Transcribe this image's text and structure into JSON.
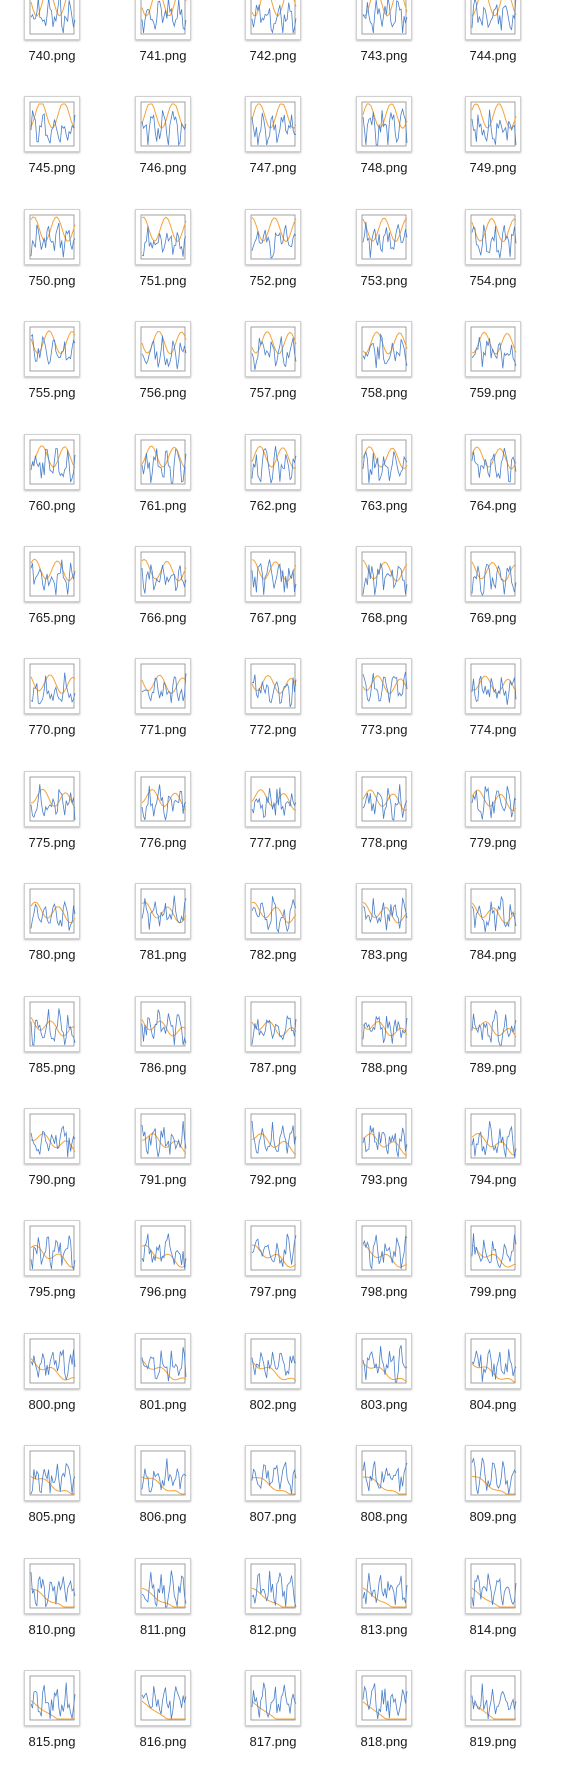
{
  "file_grid": {
    "colors": {
      "blue_line": "#4a7fc9",
      "orange_line": "#f5a23a",
      "frame": "#8a8a8a"
    },
    "files": [
      {
        "label": "740.png",
        "icon": "png-chart-thumbnail"
      },
      {
        "label": "741.png",
        "icon": "png-chart-thumbnail"
      },
      {
        "label": "742.png",
        "icon": "png-chart-thumbnail"
      },
      {
        "label": "743.png",
        "icon": "png-chart-thumbnail"
      },
      {
        "label": "744.png",
        "icon": "png-chart-thumbnail"
      },
      {
        "label": "745.png",
        "icon": "png-chart-thumbnail"
      },
      {
        "label": "746.png",
        "icon": "png-chart-thumbnail"
      },
      {
        "label": "747.png",
        "icon": "png-chart-thumbnail"
      },
      {
        "label": "748.png",
        "icon": "png-chart-thumbnail"
      },
      {
        "label": "749.png",
        "icon": "png-chart-thumbnail"
      },
      {
        "label": "750.png",
        "icon": "png-chart-thumbnail"
      },
      {
        "label": "751.png",
        "icon": "png-chart-thumbnail"
      },
      {
        "label": "752.png",
        "icon": "png-chart-thumbnail"
      },
      {
        "label": "753.png",
        "icon": "png-chart-thumbnail"
      },
      {
        "label": "754.png",
        "icon": "png-chart-thumbnail"
      },
      {
        "label": "755.png",
        "icon": "png-chart-thumbnail"
      },
      {
        "label": "756.png",
        "icon": "png-chart-thumbnail"
      },
      {
        "label": "757.png",
        "icon": "png-chart-thumbnail"
      },
      {
        "label": "758.png",
        "icon": "png-chart-thumbnail"
      },
      {
        "label": "759.png",
        "icon": "png-chart-thumbnail"
      },
      {
        "label": "760.png",
        "icon": "png-chart-thumbnail"
      },
      {
        "label": "761.png",
        "icon": "png-chart-thumbnail"
      },
      {
        "label": "762.png",
        "icon": "png-chart-thumbnail"
      },
      {
        "label": "763.png",
        "icon": "png-chart-thumbnail"
      },
      {
        "label": "764.png",
        "icon": "png-chart-thumbnail"
      },
      {
        "label": "765.png",
        "icon": "png-chart-thumbnail"
      },
      {
        "label": "766.png",
        "icon": "png-chart-thumbnail"
      },
      {
        "label": "767.png",
        "icon": "png-chart-thumbnail"
      },
      {
        "label": "768.png",
        "icon": "png-chart-thumbnail"
      },
      {
        "label": "769.png",
        "icon": "png-chart-thumbnail"
      },
      {
        "label": "770.png",
        "icon": "png-chart-thumbnail"
      },
      {
        "label": "771.png",
        "icon": "png-chart-thumbnail"
      },
      {
        "label": "772.png",
        "icon": "png-chart-thumbnail"
      },
      {
        "label": "773.png",
        "icon": "png-chart-thumbnail"
      },
      {
        "label": "774.png",
        "icon": "png-chart-thumbnail"
      },
      {
        "label": "775.png",
        "icon": "png-chart-thumbnail"
      },
      {
        "label": "776.png",
        "icon": "png-chart-thumbnail"
      },
      {
        "label": "777.png",
        "icon": "png-chart-thumbnail"
      },
      {
        "label": "778.png",
        "icon": "png-chart-thumbnail"
      },
      {
        "label": "779.png",
        "icon": "png-chart-thumbnail"
      },
      {
        "label": "780.png",
        "icon": "png-chart-thumbnail"
      },
      {
        "label": "781.png",
        "icon": "png-chart-thumbnail"
      },
      {
        "label": "782.png",
        "icon": "png-chart-thumbnail"
      },
      {
        "label": "783.png",
        "icon": "png-chart-thumbnail"
      },
      {
        "label": "784.png",
        "icon": "png-chart-thumbnail"
      },
      {
        "label": "785.png",
        "icon": "png-chart-thumbnail"
      },
      {
        "label": "786.png",
        "icon": "png-chart-thumbnail"
      },
      {
        "label": "787.png",
        "icon": "png-chart-thumbnail"
      },
      {
        "label": "788.png",
        "icon": "png-chart-thumbnail"
      },
      {
        "label": "789.png",
        "icon": "png-chart-thumbnail"
      },
      {
        "label": "790.png",
        "icon": "png-chart-thumbnail"
      },
      {
        "label": "791.png",
        "icon": "png-chart-thumbnail"
      },
      {
        "label": "792.png",
        "icon": "png-chart-thumbnail"
      },
      {
        "label": "793.png",
        "icon": "png-chart-thumbnail"
      },
      {
        "label": "794.png",
        "icon": "png-chart-thumbnail"
      },
      {
        "label": "795.png",
        "icon": "png-chart-thumbnail"
      },
      {
        "label": "796.png",
        "icon": "png-chart-thumbnail"
      },
      {
        "label": "797.png",
        "icon": "png-chart-thumbnail"
      },
      {
        "label": "798.png",
        "icon": "png-chart-thumbnail"
      },
      {
        "label": "799.png",
        "icon": "png-chart-thumbnail"
      },
      {
        "label": "800.png",
        "icon": "png-chart-thumbnail"
      },
      {
        "label": "801.png",
        "icon": "png-chart-thumbnail"
      },
      {
        "label": "802.png",
        "icon": "png-chart-thumbnail"
      },
      {
        "label": "803.png",
        "icon": "png-chart-thumbnail"
      },
      {
        "label": "804.png",
        "icon": "png-chart-thumbnail"
      },
      {
        "label": "805.png",
        "icon": "png-chart-thumbnail"
      },
      {
        "label": "806.png",
        "icon": "png-chart-thumbnail"
      },
      {
        "label": "807.png",
        "icon": "png-chart-thumbnail"
      },
      {
        "label": "808.png",
        "icon": "png-chart-thumbnail"
      },
      {
        "label": "809.png",
        "icon": "png-chart-thumbnail"
      },
      {
        "label": "810.png",
        "icon": "png-chart-thumbnail"
      },
      {
        "label": "811.png",
        "icon": "png-chart-thumbnail"
      },
      {
        "label": "812.png",
        "icon": "png-chart-thumbnail"
      },
      {
        "label": "813.png",
        "icon": "png-chart-thumbnail"
      },
      {
        "label": "814.png",
        "icon": "png-chart-thumbnail"
      },
      {
        "label": "815.png",
        "icon": "png-chart-thumbnail"
      },
      {
        "label": "816.png",
        "icon": "png-chart-thumbnail"
      },
      {
        "label": "817.png",
        "icon": "png-chart-thumbnail"
      },
      {
        "label": "818.png",
        "icon": "png-chart-thumbnail"
      },
      {
        "label": "819.png",
        "icon": "png-chart-thumbnail"
      }
    ]
  }
}
